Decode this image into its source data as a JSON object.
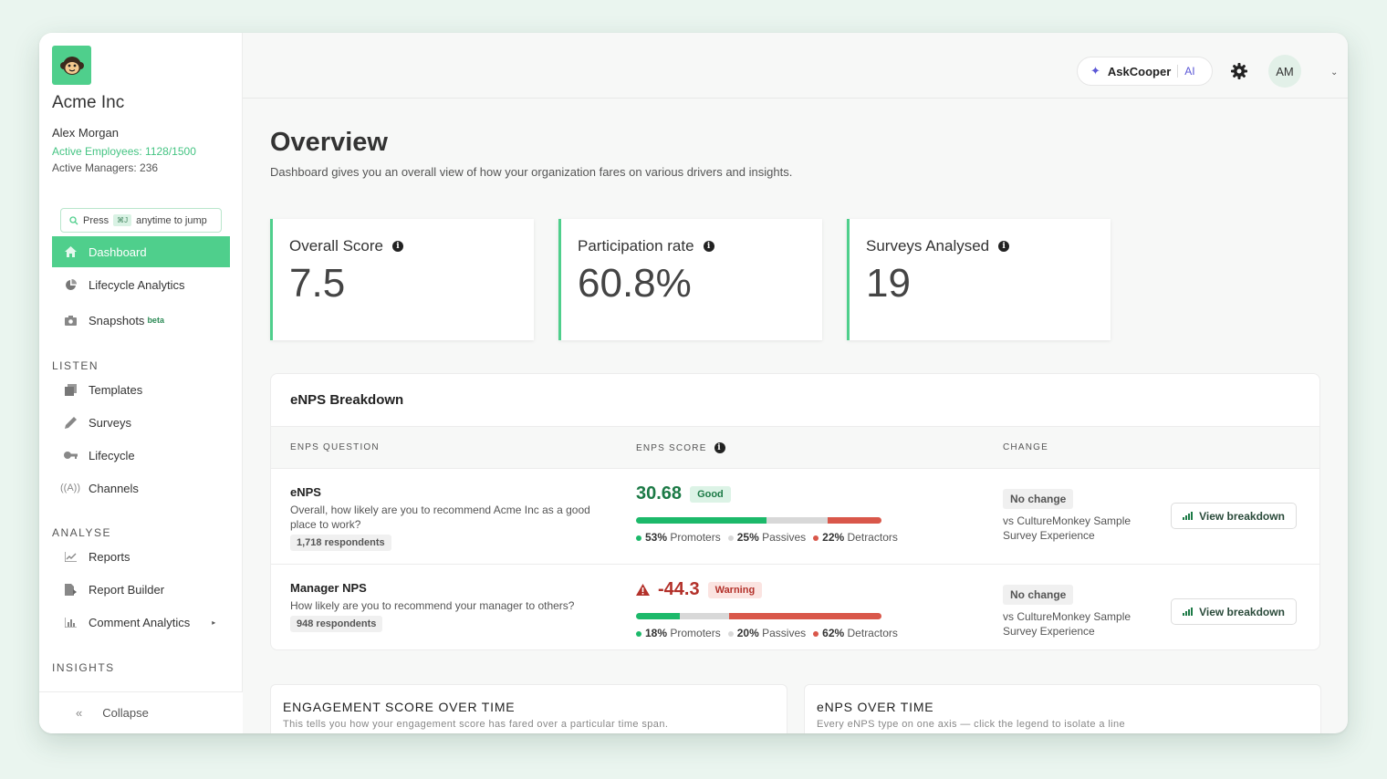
{
  "org": {
    "name": "Acme Inc",
    "user": "Alex Morgan",
    "active_employees": "Active Employees: 1128/1500",
    "active_managers": "Active Managers: 236"
  },
  "jump": {
    "press": "Press",
    "shortcut": "⌘J",
    "suffix": "anytime to jump"
  },
  "nav": {
    "top": [
      {
        "label": "Dashboard",
        "icon": "home-icon",
        "active": true
      },
      {
        "label": "Lifecycle Analytics",
        "icon": "pie-icon"
      },
      {
        "label": "Snapshots",
        "icon": "camera-icon",
        "badge": "beta"
      }
    ],
    "listen_head": "LISTEN",
    "listen": [
      {
        "label": "Templates",
        "icon": "templates-icon"
      },
      {
        "label": "Surveys",
        "icon": "pen-icon"
      },
      {
        "label": "Lifecycle",
        "icon": "key-icon"
      },
      {
        "label": "Channels",
        "icon": "broadcast-icon"
      }
    ],
    "analyse_head": "ANALYSE",
    "analyse": [
      {
        "label": "Reports",
        "icon": "line-chart-icon"
      },
      {
        "label": "Report Builder",
        "icon": "doc-icon"
      },
      {
        "label": "Comment Analytics",
        "icon": "bar-chart-icon"
      }
    ],
    "insights_head": "INSIGHTS",
    "collapse": "Collapse"
  },
  "header": {
    "ask_label": "AskCooper",
    "ai": "AI",
    "avatar": "AM"
  },
  "page": {
    "title": "Overview",
    "subtitle": "Dashboard gives you an overall view of how your organization fares on various drivers and insights."
  },
  "stats": [
    {
      "label": "Overall Score",
      "value": "7.5"
    },
    {
      "label": "Participation rate",
      "value": "60.8%"
    },
    {
      "label": "Surveys Analysed",
      "value": "19"
    }
  ],
  "enps": {
    "title": "eNPS Breakdown",
    "headers": {
      "question": "ENPS QUESTION",
      "score": "ENPS SCORE",
      "change": "CHANGE"
    },
    "rows": [
      {
        "title": "eNPS",
        "question": "Overall, how likely are you to recommend Acme Inc as a good place to work?",
        "respondents": "1,718 respondents",
        "score": "30.68",
        "status": "Good",
        "promoters": "53%",
        "passives": "25%",
        "detractors": "22%",
        "promoters_label": "Promoters",
        "passives_label": "Passives",
        "detractors_label": "Detractors",
        "bar": {
          "promoters": 0.53,
          "passives": 0.25,
          "detractors": 0.22
        },
        "change": "No change",
        "change_note": "vs CultureMonkey Sample Survey Experience",
        "view": "View breakdown"
      },
      {
        "title": "Manager NPS",
        "question": "How likely are you to recommend your manager to others?",
        "respondents": "948 respondents",
        "score": "-44.3",
        "status": "Warning",
        "promoters": "18%",
        "passives": "20%",
        "detractors": "62%",
        "promoters_label": "Promoters",
        "passives_label": "Passives",
        "detractors_label": "Detractors",
        "bar": {
          "promoters": 0.18,
          "passives": 0.2,
          "detractors": 0.62
        },
        "change": "No change",
        "change_note": "vs CultureMonkey Sample Survey Experience",
        "view": "View breakdown"
      }
    ]
  },
  "bottom": [
    {
      "title": "ENGAGEMENT SCORE OVER TIME",
      "subtitle": "This tells you how your engagement score has fared over a particular time span."
    },
    {
      "title": "eNPS OVER TIME",
      "subtitle": "Every eNPS type on one axis — click the legend to isolate a line"
    }
  ],
  "colors": {
    "accent": "#4fcf8c",
    "promoter": "#1cb96a",
    "passive": "#d8d8d8",
    "detractor": "#d9574a",
    "good_text": "#1c7a46",
    "warning_text": "#b3312a"
  }
}
